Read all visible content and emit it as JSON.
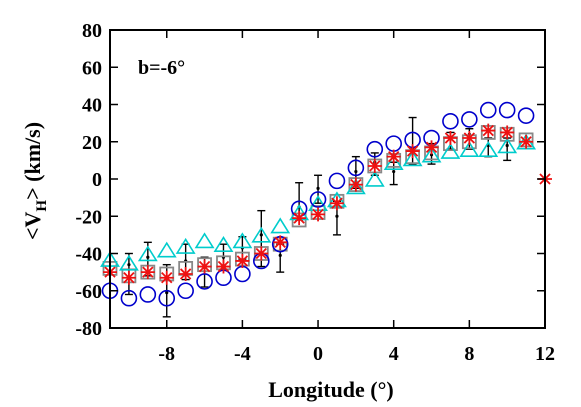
{
  "chart_data": {
    "type": "scatter",
    "title": "",
    "annotation": "b=-6°",
    "xlabel": "Longitude (°)",
    "ylabel_main": "<V",
    "ylabel_sub": "H",
    "ylabel_end": "> (km/s)",
    "xlim": [
      -11,
      12
    ],
    "ylim": [
      -80,
      80
    ],
    "xticks": [
      -8,
      -4,
      0,
      4,
      8,
      12
    ],
    "yticks": [
      -80,
      -60,
      -40,
      -20,
      0,
      20,
      40,
      60,
      80
    ],
    "grid": false,
    "series": [
      {
        "marker": "circle",
        "color": "#0000cc",
        "x": [
          -11,
          -10,
          -9,
          -8,
          -7,
          -6,
          -5,
          -4,
          -3,
          -2,
          -1,
          0,
          1,
          2,
          3,
          4,
          5,
          6,
          7,
          8,
          9,
          10,
          11
        ],
        "y": [
          -60,
          -64,
          -62,
          -64,
          -60,
          -55,
          -53,
          -51,
          -44,
          -35,
          -16,
          -11,
          -1,
          6,
          16,
          19,
          21,
          22,
          31,
          32,
          37,
          37,
          34
        ]
      },
      {
        "marker": "triangle",
        "color": "#00cccc",
        "x": [
          -11,
          -10,
          -9,
          -8,
          -7,
          -6,
          -5,
          -4,
          -3,
          -2,
          -1,
          0,
          1,
          2,
          3,
          4,
          5,
          6,
          7,
          8,
          9,
          10,
          11
        ],
        "y": [
          -44,
          -46,
          -41,
          -39,
          -37,
          -34,
          -36,
          -34,
          -31,
          -26,
          -19,
          -14,
          -12,
          -5,
          -1,
          8,
          10,
          12,
          14,
          15,
          15,
          17,
          19
        ]
      },
      {
        "marker": "square",
        "color": "#888888",
        "x": [
          -11,
          -10,
          -9,
          -8,
          -7,
          -6,
          -5,
          -4,
          -3,
          -2,
          -1,
          0,
          1,
          2,
          3,
          4,
          5,
          6,
          7,
          8,
          9,
          10,
          11
        ],
        "y": [
          -48,
          -52,
          -50,
          -51,
          -48,
          -46,
          -45,
          -43,
          -40,
          -35,
          -22,
          -18,
          -12,
          -3,
          7,
          10,
          12,
          14,
          19,
          20,
          25,
          24,
          21
        ]
      },
      {
        "marker": "asterisk",
        "color": "#ee1111",
        "x": [
          -11,
          -10,
          -9,
          -8,
          -7,
          -6,
          -5,
          -4,
          -3,
          -2,
          -1,
          0,
          1,
          2,
          3,
          4,
          5,
          6,
          7,
          8,
          9,
          10,
          11,
          12
        ],
        "y": [
          -50,
          -53,
          -50,
          -53,
          -51,
          -47,
          -47,
          -44,
          -40,
          -34,
          -21,
          -19,
          -13,
          -3,
          7,
          12,
          15,
          17,
          22,
          22,
          26,
          25,
          20,
          0
        ]
      }
    ],
    "error_bars": [
      {
        "x": -10,
        "y": -46,
        "lo": -62,
        "hi": -40
      },
      {
        "x": -9,
        "y": -42,
        "lo": -52,
        "hi": -34
      },
      {
        "x": -8,
        "y": -61,
        "lo": -74,
        "hi": -46
      },
      {
        "x": -7,
        "y": -44,
        "lo": -54,
        "hi": -35
      },
      {
        "x": -6,
        "y": -47,
        "lo": -58,
        "hi": -42
      },
      {
        "x": -5,
        "y": -42,
        "lo": -47,
        "hi": -35
      },
      {
        "x": -4,
        "y": -37,
        "lo": -43,
        "hi": -31
      },
      {
        "x": -3,
        "y": -30,
        "lo": -47,
        "hi": -17
      },
      {
        "x": -2,
        "y": -41,
        "lo": -50,
        "hi": -35
      },
      {
        "x": -1,
        "y": -15,
        "lo": -22,
        "hi": -2
      },
      {
        "x": 0,
        "y": -5,
        "lo": -13,
        "hi": 2
      },
      {
        "x": 1,
        "y": -20,
        "lo": -30,
        "hi": -12
      },
      {
        "x": 2,
        "y": 4,
        "lo": -5,
        "hi": 12
      },
      {
        "x": 3,
        "y": 9,
        "lo": 2,
        "hi": 14
      },
      {
        "x": 4,
        "y": 4,
        "lo": -3,
        "hi": 9
      },
      {
        "x": 5,
        "y": 16,
        "lo": 8,
        "hi": 33
      },
      {
        "x": 6,
        "y": 13,
        "lo": 8,
        "hi": 19
      },
      {
        "x": 7,
        "y": 22,
        "lo": 16,
        "hi": 25
      },
      {
        "x": 8,
        "y": 24,
        "lo": 16,
        "hi": 27
      },
      {
        "x": 9,
        "y": 18,
        "lo": 12,
        "hi": 22
      },
      {
        "x": 10,
        "y": 18,
        "lo": 10,
        "hi": 22
      }
    ]
  }
}
